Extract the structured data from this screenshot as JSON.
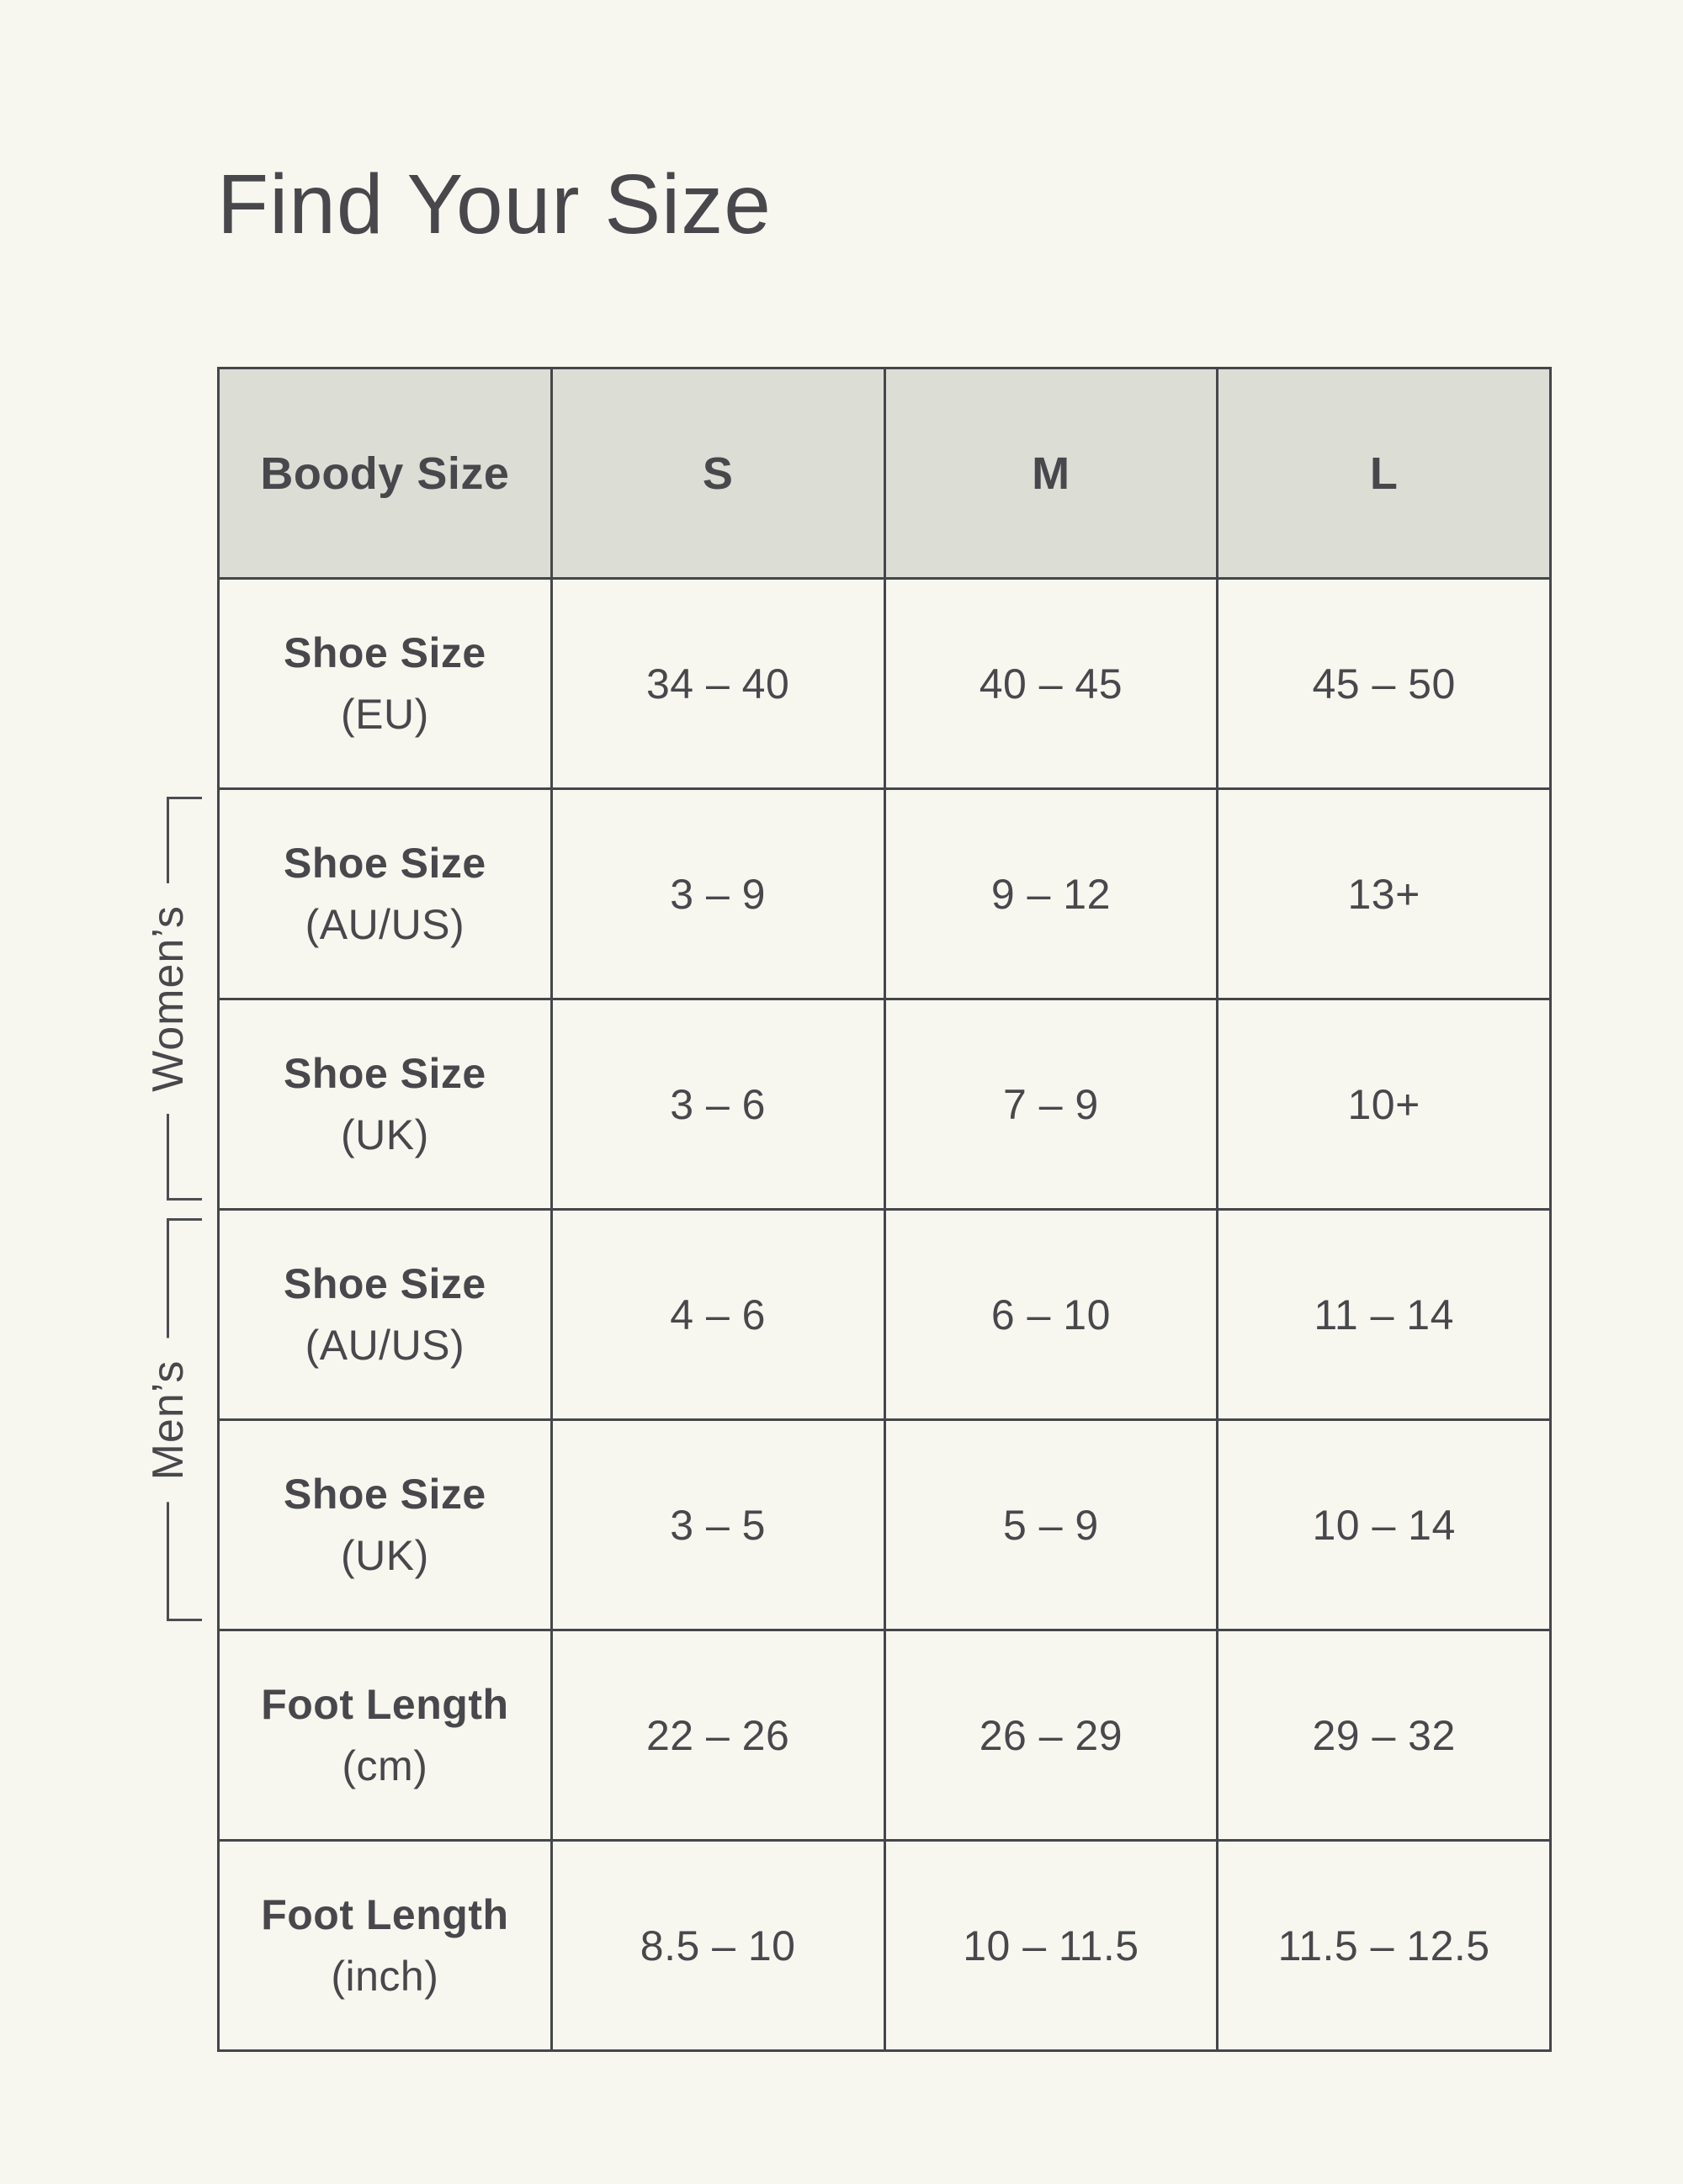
{
  "page": {
    "title": "Find Your Size"
  },
  "colors": {
    "page_background": "#f7f7f0",
    "header_background": "#dcddd5",
    "table_border": "#45464a",
    "text": "#48484c"
  },
  "groups": [
    {
      "label": "Women’s"
    },
    {
      "label": "Men’s"
    }
  ],
  "table": {
    "header": [
      "Boody Size",
      "S",
      "M",
      "L"
    ],
    "rows": [
      {
        "label_bold": "Shoe Size",
        "label_sub": "(EU)",
        "values": [
          "34 – 40",
          "40 – 45",
          "45 – 50"
        ]
      },
      {
        "label_bold": "Shoe Size",
        "label_sub": "(AU/US)",
        "values": [
          "3 – 9",
          "9 – 12",
          "13+"
        ]
      },
      {
        "label_bold": "Shoe Size",
        "label_sub": "(UK)",
        "values": [
          "3 – 6",
          "7 – 9",
          "10+"
        ]
      },
      {
        "label_bold": "Shoe Size",
        "label_sub": "(AU/US)",
        "values": [
          "4 – 6",
          "6 – 10",
          "11 – 14"
        ]
      },
      {
        "label_bold": "Shoe Size",
        "label_sub": "(UK)",
        "values": [
          "3 – 5",
          "5 – 9",
          "10 – 14"
        ]
      },
      {
        "label_bold": "Foot Length",
        "label_sub": "(cm)",
        "values": [
          "22 – 26",
          "26 – 29",
          "29 – 32"
        ]
      },
      {
        "label_bold": "Foot Length",
        "label_sub": "(inch)",
        "values": [
          "8.5 – 10",
          "10 – 11.5",
          "11.5 – 12.5"
        ]
      }
    ]
  },
  "chart_data": {
    "type": "table",
    "title": "Find Your Size",
    "columns": [
      "Boody Size",
      "S",
      "M",
      "L"
    ],
    "rows": [
      {
        "group": "",
        "label": "Shoe Size (EU)",
        "S": "34 – 40",
        "M": "40 – 45",
        "L": "45 – 50"
      },
      {
        "group": "Women’s",
        "label": "Shoe Size (AU/US)",
        "S": "3 – 9",
        "M": "9 – 12",
        "L": "13+"
      },
      {
        "group": "Women’s",
        "label": "Shoe Size (UK)",
        "S": "3 – 6",
        "M": "7 – 9",
        "L": "10+"
      },
      {
        "group": "Men’s",
        "label": "Shoe Size (AU/US)",
        "S": "4 – 6",
        "M": "6 – 10",
        "L": "11 – 14"
      },
      {
        "group": "Men’s",
        "label": "Shoe Size (UK)",
        "S": "3 – 5",
        "M": "5 – 9",
        "L": "10 – 14"
      },
      {
        "group": "",
        "label": "Foot Length (cm)",
        "S": "22 – 26",
        "M": "26 – 29",
        "L": "29 – 32"
      },
      {
        "group": "",
        "label": "Foot Length (inch)",
        "S": "8.5 – 10",
        "M": "10 – 11.5",
        "L": "11.5 – 12.5"
      }
    ]
  }
}
